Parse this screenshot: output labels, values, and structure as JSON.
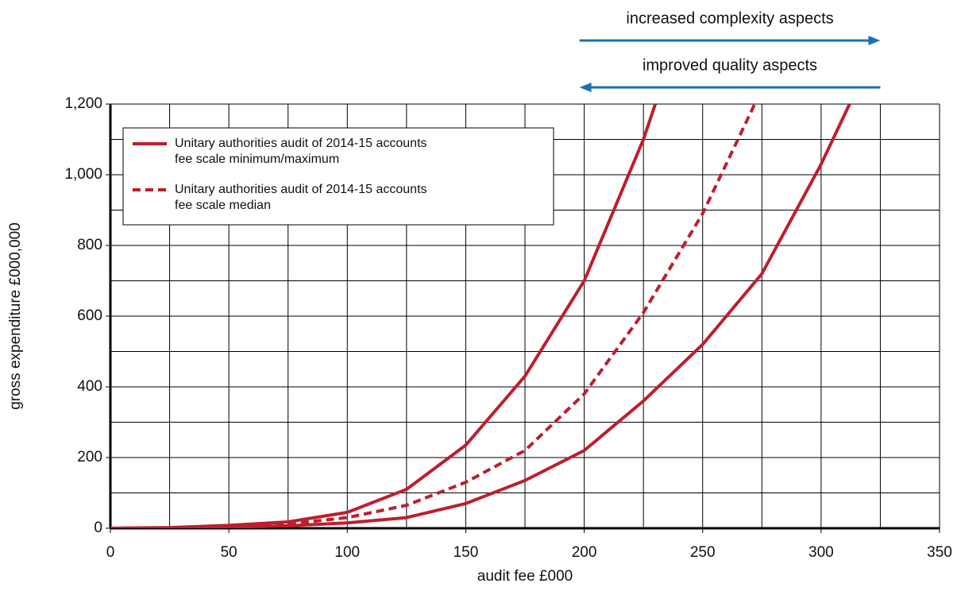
{
  "chart_data": {
    "type": "line",
    "xlabel": "audit fee £000",
    "ylabel": "gross expenditure £000,000",
    "xlim": [
      0,
      350
    ],
    "ylim": [
      0,
      1200
    ],
    "xticks": [
      0,
      50,
      100,
      150,
      200,
      250,
      300,
      350
    ],
    "yticks": [
      0,
      200,
      400,
      600,
      800,
      {
        "value": 1000,
        "label": "1,000"
      },
      {
        "value": 1200,
        "label": "1,200"
      }
    ],
    "x_minor_ticks": [
      25,
      75,
      125,
      175,
      225,
      275,
      325
    ],
    "y_minor_ticks": [
      100,
      300,
      500,
      700,
      900,
      1100
    ],
    "grid": true,
    "legend": "upper left",
    "series": [
      {
        "name_lines": [
          "Unitary authorities audit of 2014-15 accounts",
          "fee scale minimum/maximum"
        ],
        "color": "#be1e2d",
        "style": "solid",
        "curves": [
          {
            "x": [
              0,
              25,
              50,
              75,
              100,
              125,
              150,
              175,
              200,
              225,
              230
            ],
            "values": [
              0,
              2,
              8,
              18,
              45,
              110,
              235,
              430,
              700,
              1100,
              1200
            ]
          },
          {
            "x": [
              0,
              25,
              50,
              75,
              100,
              125,
              150,
              175,
              200,
              225,
              250,
              275,
              300,
              312
            ],
            "values": [
              0,
              1,
              3,
              7,
              15,
              30,
              70,
              135,
              220,
              360,
              520,
              720,
              1030,
              1200
            ]
          }
        ]
      },
      {
        "name_lines": [
          "Unitary authorities audit of 2014-15 accounts",
          "fee scale median"
        ],
        "color": "#be1e2d",
        "style": "dashed",
        "curves": [
          {
            "x": [
              0,
              25,
              50,
              75,
              100,
              125,
              150,
              175,
              200,
              225,
              250,
              272
            ],
            "values": [
              0,
              1,
              5,
              12,
              30,
              65,
              130,
              220,
              380,
              610,
              890,
              1200
            ]
          }
        ]
      }
    ],
    "annotations": [
      {
        "text": "increased complexity aspects",
        "from": 198,
        "to": 325,
        "color": "#1f6fb5"
      },
      {
        "text": "improved quality aspects",
        "from": 325,
        "to": 198,
        "color": "#1f6fb5"
      }
    ]
  }
}
